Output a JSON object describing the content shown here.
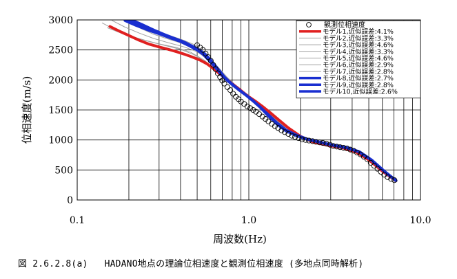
{
  "chart_data": {
    "type": "scatter",
    "xscale": "log",
    "xlim": [
      0.1,
      10.0
    ],
    "ylim": [
      0,
      3000
    ],
    "xticks": [
      "0.1",
      "1.0",
      "10.0"
    ],
    "yticks": [
      "0",
      "500",
      "1000",
      "1500",
      "2000",
      "2500",
      "3000"
    ],
    "xlabel": "周波数(Hz)",
    "ylabel": "位相速度(m/s)",
    "grid": true,
    "legend_position": "top-right",
    "observed": {
      "name": "観測位相速度",
      "x": [
        0.5,
        0.52,
        0.54,
        0.56,
        0.58,
        0.6,
        0.62,
        0.64,
        0.66,
        0.68,
        0.7,
        0.72,
        0.75,
        0.78,
        0.81,
        0.84,
        0.87,
        0.9,
        0.94,
        0.98,
        1.02,
        1.06,
        1.1,
        1.15,
        1.2,
        1.25,
        1.3,
        1.36,
        1.42,
        1.48,
        1.55,
        1.62,
        1.7,
        1.78,
        1.86,
        1.95,
        2.04,
        2.14,
        2.24,
        2.35,
        2.46,
        2.58,
        2.7,
        2.83,
        2.97,
        3.1,
        3.25,
        3.4,
        3.56,
        3.73,
        3.9,
        4.08,
        4.27,
        4.47,
        4.68,
        4.9,
        5.13,
        5.37,
        5.62,
        5.88,
        6.15,
        6.44,
        6.74,
        7.05
      ],
      "y": [
        2580,
        2540,
        2500,
        2440,
        2380,
        2320,
        2250,
        2180,
        2110,
        2050,
        1990,
        1940,
        1880,
        1830,
        1770,
        1720,
        1680,
        1640,
        1600,
        1560,
        1530,
        1500,
        1470,
        1430,
        1390,
        1350,
        1310,
        1270,
        1230,
        1200,
        1160,
        1130,
        1100,
        1070,
        1050,
        1030,
        1010,
        1000,
        990,
        980,
        970,
        960,
        950,
        940,
        920,
        900,
        890,
        880,
        870,
        860,
        840,
        820,
        790,
        760,
        720,
        680,
        620,
        570,
        520,
        470,
        420,
        380,
        350,
        330
      ]
    },
    "series": [
      {
        "name": "モデル1,近似誤差:4.1%",
        "color": "#e02020",
        "width": 4,
        "x": [
          0.155,
          0.18,
          0.2,
          0.23,
          0.26,
          0.3,
          0.34,
          0.38,
          0.42,
          0.47,
          0.52,
          0.57,
          0.62,
          0.67,
          0.72,
          0.78,
          0.85,
          0.92,
          1.0,
          1.1,
          1.2,
          1.35,
          1.5,
          1.7,
          2.0,
          2.4,
          2.9,
          3.5,
          4.2,
          5.0,
          6.0,
          7.2
        ],
        "y": [
          2890,
          2800,
          2740,
          2660,
          2600,
          2550,
          2510,
          2470,
          2430,
          2380,
          2330,
          2270,
          2190,
          2110,
          2040,
          1960,
          1880,
          1800,
          1720,
          1640,
          1560,
          1440,
          1330,
          1200,
          1060,
          960,
          910,
          870,
          800,
          670,
          480,
          320
        ]
      },
      {
        "name": "モデル2,近似誤差:3.3%",
        "color": "#a0a0a0",
        "width": 1,
        "x": [
          0.14,
          0.17,
          0.2,
          0.25,
          0.3,
          0.38,
          0.46,
          0.55,
          0.65,
          0.75,
          0.85,
          1.0,
          1.2,
          1.5,
          2.0,
          2.6,
          3.4,
          4.5,
          6.0,
          7.2
        ],
        "y": [
          2950,
          2820,
          2740,
          2660,
          2600,
          2540,
          2460,
          2330,
          2150,
          1980,
          1840,
          1700,
          1520,
          1290,
          1050,
          940,
          880,
          770,
          500,
          330
        ]
      },
      {
        "name": "モデル3,近似誤差:4.6%",
        "color": "#a0a0a0",
        "width": 1,
        "x": [
          0.15,
          0.18,
          0.22,
          0.27,
          0.33,
          0.4,
          0.48,
          0.56,
          0.66,
          0.76,
          0.88,
          1.0,
          1.2,
          1.5,
          2.0,
          2.6,
          3.4,
          4.5,
          6.0,
          7.2
        ],
        "y": [
          2870,
          2780,
          2700,
          2630,
          2570,
          2510,
          2420,
          2300,
          2130,
          1970,
          1830,
          1710,
          1530,
          1300,
          1060,
          950,
          885,
          780,
          510,
          335
        ]
      },
      {
        "name": "モデル4,近似誤差:3.3%",
        "color": "#a0a0a0",
        "width": 1,
        "x": [
          0.16,
          0.19,
          0.23,
          0.28,
          0.34,
          0.42,
          0.5,
          0.58,
          0.68,
          0.78,
          0.9,
          1.0,
          1.2,
          1.5,
          2.0,
          2.6,
          3.4,
          4.5,
          6.0,
          7.2
        ],
        "y": [
          2990,
          2880,
          2780,
          2690,
          2620,
          2550,
          2470,
          2340,
          2150,
          1980,
          1830,
          1720,
          1540,
          1300,
          1060,
          950,
          880,
          775,
          505,
          330
        ]
      },
      {
        "name": "モデル5,近似誤差:4.6%",
        "color": "#a0a0a0",
        "width": 1,
        "x": [
          0.19,
          0.23,
          0.28,
          0.34,
          0.41,
          0.5,
          0.6,
          0.7,
          0.8,
          0.92,
          1.05,
          1.2,
          1.5,
          2.0,
          2.6,
          3.4,
          4.5,
          6.0,
          7.2
        ],
        "y": [
          2990,
          2870,
          2760,
          2680,
          2610,
          2500,
          2300,
          2100,
          1940,
          1800,
          1670,
          1530,
          1300,
          1060,
          950,
          880,
          770,
          500,
          330
        ]
      },
      {
        "name": "モデル6,近似誤差:2.9%",
        "color": "#a0a0a0",
        "width": 1,
        "x": [
          0.2,
          0.25,
          0.3,
          0.37,
          0.45,
          0.53,
          0.62,
          0.72,
          0.82,
          0.95,
          1.1,
          1.3,
          1.6,
          2.0,
          2.6,
          3.4,
          4.5,
          6.0,
          7.2
        ],
        "y": [
          2990,
          2850,
          2760,
          2680,
          2600,
          2480,
          2280,
          2080,
          1920,
          1780,
          1630,
          1440,
          1230,
          1060,
          950,
          885,
          780,
          505,
          330
        ]
      },
      {
        "name": "モデル7,近似誤差:2.8%",
        "color": "#a0a0a0",
        "width": 1,
        "x": [
          0.22,
          0.27,
          0.33,
          0.4,
          0.48,
          0.56,
          0.65,
          0.75,
          0.86,
          1.0,
          1.15,
          1.35,
          1.6,
          2.0,
          2.6,
          3.4,
          4.5,
          6.0,
          7.2
        ],
        "y": [
          2990,
          2860,
          2760,
          2680,
          2590,
          2450,
          2240,
          2040,
          1880,
          1730,
          1580,
          1400,
          1230,
          1060,
          955,
          885,
          780,
          505,
          330
        ]
      },
      {
        "name": "モデル8,近似誤差:2.7%",
        "color": "#1a2fd0",
        "width": 4,
        "x": [
          0.21,
          0.24,
          0.28,
          0.32,
          0.37,
          0.42,
          0.47,
          0.52,
          0.56,
          0.6,
          0.64,
          0.68,
          0.72,
          0.77,
          0.83,
          0.9,
          0.98,
          1.07,
          1.17,
          1.3,
          1.45,
          1.65,
          1.9,
          2.2,
          2.6,
          3.1,
          3.7,
          4.4,
          5.2,
          6.2,
          7.2
        ],
        "y": [
          2990,
          2920,
          2830,
          2760,
          2690,
          2630,
          2560,
          2490,
          2420,
          2330,
          2230,
          2140,
          2050,
          1970,
          1890,
          1810,
          1730,
          1640,
          1540,
          1400,
          1270,
          1150,
          1070,
          1010,
          960,
          910,
          870,
          800,
          660,
          470,
          325
        ]
      },
      {
        "name": "モデル9,近似誤差:2.8%",
        "color": "#1a2fd0",
        "width": 4,
        "x": [
          0.2,
          0.23,
          0.27,
          0.31,
          0.36,
          0.41,
          0.46,
          0.51,
          0.55,
          0.59,
          0.63,
          0.67,
          0.71,
          0.76,
          0.82,
          0.89,
          0.97,
          1.06,
          1.16,
          1.3,
          1.45,
          1.65,
          1.9,
          2.2,
          2.6,
          3.1,
          3.7,
          4.4,
          5.2,
          6.2,
          7.2
        ],
        "y": [
          2990,
          2910,
          2830,
          2760,
          2690,
          2630,
          2560,
          2490,
          2420,
          2330,
          2240,
          2150,
          2060,
          1980,
          1900,
          1820,
          1740,
          1650,
          1550,
          1410,
          1280,
          1160,
          1075,
          1010,
          960,
          912,
          870,
          802,
          662,
          470,
          322
        ]
      },
      {
        "name": "モデル10,近似誤差:2.6%",
        "color": "#1a2fd0",
        "width": 4,
        "x": [
          0.19,
          0.22,
          0.26,
          0.3,
          0.35,
          0.4,
          0.45,
          0.5,
          0.54,
          0.58,
          0.62,
          0.66,
          0.7,
          0.75,
          0.81,
          0.88,
          0.96,
          1.05,
          1.15,
          1.3,
          1.45,
          1.65,
          1.9,
          2.2,
          2.6,
          3.1,
          3.7,
          4.4,
          5.2,
          6.2,
          7.2
        ],
        "y": [
          2990,
          2910,
          2830,
          2770,
          2700,
          2640,
          2570,
          2500,
          2430,
          2340,
          2250,
          2160,
          2070,
          1990,
          1910,
          1830,
          1750,
          1660,
          1560,
          1420,
          1290,
          1165,
          1080,
          1012,
          962,
          914,
          872,
          805,
          665,
          472,
          322
        ]
      }
    ]
  },
  "caption": "図 2.6.2.8(a)   HADANO地点の理論位相速度と観測位相速度 (多地点同時解析)"
}
